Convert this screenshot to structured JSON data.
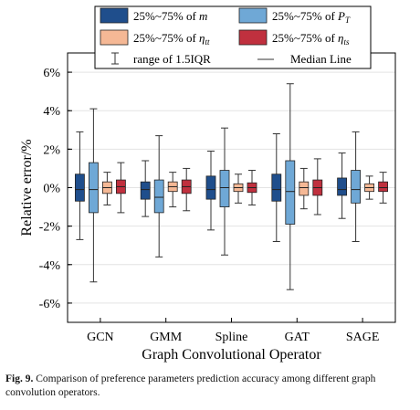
{
  "caption": {
    "label": "Fig. 9.",
    "text": "Comparison of preference parameters prediction accuracy among different graph convolution operators."
  },
  "colors": {
    "m": "#1f4e8c",
    "PT": "#6fa8d6",
    "eta_tt": "#f5b895",
    "eta_ts": "#c0303e"
  },
  "chart_data": {
    "type": "boxplot",
    "title": "",
    "xlabel": "Graph Convolutional Operator",
    "ylabel": "Relative error/%",
    "ylim": [
      -7,
      7
    ],
    "yticks": [
      -6,
      -4,
      -2,
      0,
      2,
      4,
      6
    ],
    "ytick_labels": [
      "-6%",
      "-4%",
      "-2%",
      "0%",
      "2%",
      "4%",
      "6%"
    ],
    "grid": true,
    "legend_position": "top",
    "legend": [
      {
        "key": "m",
        "prefix": "25%~75% of ",
        "symbol": "m",
        "sub": ""
      },
      {
        "key": "PT",
        "prefix": "25%~75% of ",
        "symbol": "P",
        "sub": "T"
      },
      {
        "key": "eta_tt",
        "prefix": "25%~75% of ",
        "symbol": "η",
        "sub": "tt"
      },
      {
        "key": "eta_ts",
        "prefix": "25%~75% of ",
        "symbol": "η",
        "sub": "ts"
      }
    ],
    "legend_whisker_label": "range of 1.5IQR",
    "legend_median_label": "Median Line",
    "categories": [
      "GCN",
      "GMM",
      "Spline",
      "GAT",
      "SAGE"
    ],
    "series": [
      {
        "key": "m",
        "stats": [
          {
            "whislo": -2.7,
            "q1": -0.7,
            "med": -0.1,
            "q3": 0.7,
            "whishi": 2.9
          },
          {
            "whislo": -1.5,
            "q1": -0.6,
            "med": -0.1,
            "q3": 0.3,
            "whishi": 1.4
          },
          {
            "whislo": -2.2,
            "q1": -0.6,
            "med": -0.1,
            "q3": 0.6,
            "whishi": 1.9
          },
          {
            "whislo": -2.8,
            "q1": -0.7,
            "med": -0.1,
            "q3": 0.7,
            "whishi": 2.8
          },
          {
            "whislo": -1.6,
            "q1": -0.4,
            "med": -0.1,
            "q3": 0.5,
            "whishi": 1.8
          }
        ]
      },
      {
        "key": "PT",
        "stats": [
          {
            "whislo": -4.9,
            "q1": -1.3,
            "med": -0.1,
            "q3": 1.3,
            "whishi": 4.1
          },
          {
            "whislo": -3.6,
            "q1": -1.3,
            "med": -0.5,
            "q3": 0.4,
            "whishi": 2.7
          },
          {
            "whislo": -3.5,
            "q1": -1.0,
            "med": 0.0,
            "q3": 0.9,
            "whishi": 3.1
          },
          {
            "whislo": -5.3,
            "q1": -1.9,
            "med": -0.2,
            "q3": 1.4,
            "whishi": 5.4
          },
          {
            "whislo": -2.8,
            "q1": -0.8,
            "med": -0.1,
            "q3": 0.9,
            "whishi": 2.9
          }
        ]
      },
      {
        "key": "eta_tt",
        "stats": [
          {
            "whislo": -0.9,
            "q1": -0.3,
            "med": 0.0,
            "q3": 0.3,
            "whishi": 0.8
          },
          {
            "whislo": -1.0,
            "q1": -0.2,
            "med": 0.05,
            "q3": 0.3,
            "whishi": 0.8
          },
          {
            "whislo": -0.8,
            "q1": -0.2,
            "med": 0.0,
            "q3": 0.2,
            "whishi": 0.7
          },
          {
            "whislo": -1.1,
            "q1": -0.4,
            "med": 0.0,
            "q3": 0.3,
            "whishi": 1.0
          },
          {
            "whislo": -0.6,
            "q1": -0.2,
            "med": 0.0,
            "q3": 0.2,
            "whishi": 0.6
          }
        ]
      },
      {
        "key": "eta_ts",
        "stats": [
          {
            "whislo": -1.3,
            "q1": -0.3,
            "med": 0.05,
            "q3": 0.4,
            "whishi": 1.3
          },
          {
            "whislo": -1.2,
            "q1": -0.3,
            "med": 0.05,
            "q3": 0.4,
            "whishi": 1.0
          },
          {
            "whislo": -0.9,
            "q1": -0.25,
            "med": 0.0,
            "q3": 0.25,
            "whishi": 0.9
          },
          {
            "whislo": -1.4,
            "q1": -0.4,
            "med": 0.0,
            "q3": 0.4,
            "whishi": 1.5
          },
          {
            "whislo": -0.8,
            "q1": -0.2,
            "med": 0.0,
            "q3": 0.3,
            "whishi": 0.8
          }
        ]
      }
    ]
  }
}
